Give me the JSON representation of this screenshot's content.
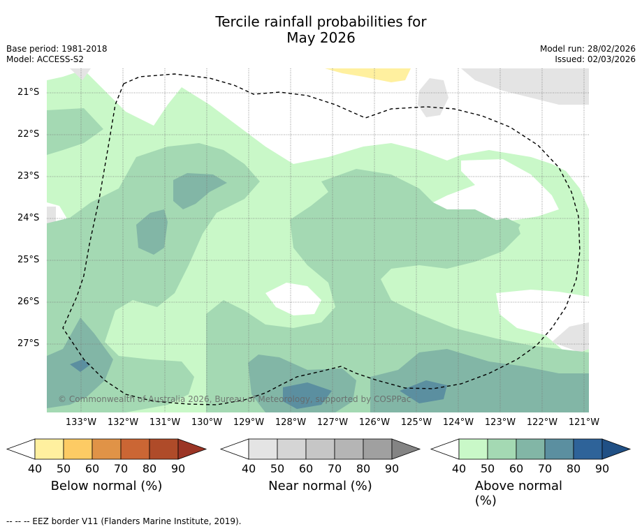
{
  "title_line1": "Tercile rainfall probabilities for",
  "title_line2": "May 2026",
  "base_period": "Base period: 1981-2018",
  "model": "Model: ACCESS-S2",
  "model_run": "Model run: 28/02/2026",
  "issued": "Issued: 02/03/2026",
  "copyright": "© Commonwealth of Australia 2026, Bureau of Meteorology, supported by COSPPac",
  "lat_labels": [
    "21°S",
    "22°S",
    "23°S",
    "24°S",
    "25°S",
    "26°S",
    "27°S"
  ],
  "lon_labels": [
    "133°W",
    "132°W",
    "131°W",
    "130°W",
    "129°W",
    "128°W",
    "127°W",
    "126°W",
    "125°W",
    "124°W",
    "123°W",
    "122°W",
    "121°W"
  ],
  "colorbars": [
    {
      "title": "Below normal (%)",
      "ticks": [
        "40",
        "50",
        "60",
        "70",
        "80",
        "90"
      ],
      "colors": [
        "#fff09f",
        "#fdcb64",
        "#e09347",
        "#cb6634",
        "#af4b29",
        "#9b3525"
      ]
    },
    {
      "title": "Near normal (%)",
      "ticks": [
        "40",
        "50",
        "60",
        "70",
        "80",
        "90"
      ],
      "colors": [
        "#e4e4e4",
        "#d5d5d5",
        "#c6c6c6",
        "#b5b5b5",
        "#a0a0a0",
        "#848484"
      ]
    },
    {
      "title": "Above normal (%)",
      "ticks": [
        "40",
        "50",
        "60",
        "70",
        "80",
        "90"
      ],
      "colors": [
        "#c9f8c8",
        "#a4d9b3",
        "#82b6a6",
        "#5b8fa0",
        "#2e6399",
        "#205085"
      ]
    }
  ],
  "footer": "--  --  -- EEZ border V11 (Flanders Marine Institute, 2019)."
}
